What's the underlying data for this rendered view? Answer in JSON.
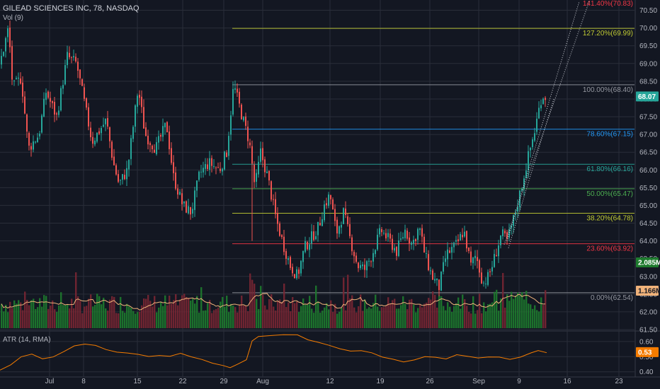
{
  "header": {
    "symbol_title": "GILEAD SCIENCES INC, 78, NASDAQ",
    "volume_indicator": "Vol (9)",
    "atr_indicator": "ATR (14, RMA)"
  },
  "chart_data": [
    {
      "type": "candlestick",
      "title": "GILEAD SCIENCES INC, 78, NASDAQ",
      "ylim": [
        61.5,
        70.75
      ],
      "y_ticks": [
        61.5,
        62.0,
        62.5,
        63.0,
        63.5,
        64.0,
        64.5,
        65.0,
        65.5,
        66.0,
        66.5,
        67.0,
        67.5,
        68.0,
        68.5,
        69.0,
        69.5,
        70.0,
        70.5
      ],
      "x_ticks": [
        "Jul",
        "8",
        "15",
        "22",
        "29",
        "Aug",
        "12",
        "19",
        "26",
        "Sep",
        "9",
        "16",
        "23"
      ],
      "last_price": 68.07,
      "price_path": [
        [
          0,
          69.0
        ],
        [
          12,
          70.0
        ],
        [
          18,
          68.3
        ],
        [
          30,
          68.6
        ],
        [
          40,
          66.6
        ],
        [
          55,
          67.0
        ],
        [
          65,
          68.2
        ],
        [
          80,
          67.5
        ],
        [
          95,
          69.2
        ],
        [
          108,
          69.0
        ],
        [
          120,
          67.8
        ],
        [
          130,
          66.8
        ],
        [
          150,
          67.4
        ],
        [
          160,
          66.2
        ],
        [
          168,
          65.6
        ],
        [
          180,
          66.0
        ],
        [
          195,
          68.3
        ],
        [
          205,
          67.0
        ],
        [
          220,
          66.6
        ],
        [
          235,
          67.3
        ],
        [
          245,
          65.8
        ],
        [
          258,
          65.0
        ],
        [
          270,
          64.8
        ],
        [
          282,
          65.9
        ],
        [
          295,
          66.2
        ],
        [
          310,
          66.0
        ],
        [
          320,
          66.5
        ],
        [
          330,
          68.4
        ],
        [
          342,
          67.5
        ],
        [
          352,
          66.8
        ],
        [
          360,
          65.5
        ],
        [
          368,
          66.5
        ],
        [
          378,
          65.8
        ],
        [
          390,
          64.6
        ],
        [
          400,
          63.9
        ],
        [
          410,
          63.3
        ],
        [
          420,
          63.0
        ],
        [
          430,
          63.8
        ],
        [
          440,
          64.1
        ],
        [
          450,
          64.4
        ],
        [
          458,
          65.0
        ],
        [
          466,
          65.3
        ],
        [
          475,
          64.2
        ],
        [
          485,
          64.8
        ],
        [
          495,
          64.0
        ],
        [
          505,
          63.3
        ],
        [
          515,
          63.2
        ],
        [
          525,
          63.6
        ],
        [
          538,
          64.3
        ],
        [
          550,
          64.0
        ],
        [
          560,
          63.7
        ],
        [
          572,
          64.3
        ],
        [
          582,
          63.9
        ],
        [
          592,
          64.4
        ],
        [
          600,
          63.6
        ],
        [
          610,
          63.0
        ],
        [
          620,
          62.7
        ],
        [
          630,
          63.6
        ],
        [
          645,
          63.9
        ],
        [
          655,
          64.3
        ],
        [
          665,
          63.3
        ],
        [
          672,
          63.6
        ],
        [
          682,
          62.8
        ],
        [
          690,
          63.0
        ],
        [
          698,
          63.5
        ],
        [
          708,
          64.2
        ],
        [
          716,
          64.0
        ],
        [
          725,
          64.6
        ],
        [
          735,
          65.4
        ],
        [
          745,
          66.3
        ],
        [
          755,
          67.1
        ],
        [
          765,
          68.1
        ],
        [
          772,
          68.07
        ]
      ],
      "annotations": {
        "session_high_marker": 68.4,
        "session_low_marker": 62.54
      }
    },
    {
      "type": "fibonacci",
      "levels": [
        {
          "label": "141.40%(70.83)",
          "value": 70.83,
          "color": "#f23645"
        },
        {
          "label": "127.20%(69.99)",
          "value": 69.99,
          "color": "#c0ca33"
        },
        {
          "label": "100.00%(68.40)",
          "value": 68.4,
          "color": "#9598a1"
        },
        {
          "label": "78.60%(67.15)",
          "value": 67.15,
          "color": "#2196f3"
        },
        {
          "label": "61.80%(66.16)",
          "value": 66.16,
          "color": "#26a69a"
        },
        {
          "label": "50.00%(65.47)",
          "value": 65.47,
          "color": "#4caf50"
        },
        {
          "label": "38.20%(64.78)",
          "value": 64.78,
          "color": "#c0ca33"
        },
        {
          "label": "23.60%(63.92)",
          "value": 63.92,
          "color": "#f23645"
        },
        {
          "label": "0.00%(62.54)",
          "value": 62.54,
          "color": "#9598a1"
        }
      ]
    },
    {
      "type": "bar",
      "title": "Vol (9)",
      "last_volume_label": "2.085M",
      "volume_ma_label": "1.166M",
      "colors": {
        "up": "#1e7b2e",
        "down": "#7a2633",
        "ma": "#f0b27a"
      }
    },
    {
      "type": "line",
      "title": "ATR (14, RMA)",
      "ylim": [
        0.38,
        0.66
      ],
      "y_ticks": [
        0.4,
        0.5,
        0.6
      ],
      "last_value_label": "0.53",
      "color": "#f57c00",
      "values_path": [
        [
          0,
          0.41
        ],
        [
          15,
          0.45
        ],
        [
          30,
          0.5
        ],
        [
          45,
          0.52
        ],
        [
          60,
          0.49
        ],
        [
          75,
          0.5
        ],
        [
          90,
          0.53
        ],
        [
          105,
          0.57
        ],
        [
          120,
          0.58
        ],
        [
          135,
          0.57
        ],
        [
          150,
          0.55
        ],
        [
          165,
          0.53
        ],
        [
          180,
          0.52
        ],
        [
          195,
          0.52
        ],
        [
          210,
          0.5
        ],
        [
          225,
          0.51
        ],
        [
          240,
          0.5
        ],
        [
          255,
          0.52
        ],
        [
          270,
          0.5
        ],
        [
          285,
          0.48
        ],
        [
          300,
          0.46
        ],
        [
          315,
          0.44
        ],
        [
          325,
          0.43
        ],
        [
          335,
          0.45
        ],
        [
          348,
          0.48
        ],
        [
          356,
          0.6
        ],
        [
          365,
          0.63
        ],
        [
          380,
          0.64
        ],
        [
          400,
          0.64
        ],
        [
          420,
          0.64
        ],
        [
          435,
          0.61
        ],
        [
          450,
          0.59
        ],
        [
          465,
          0.57
        ],
        [
          480,
          0.55
        ],
        [
          495,
          0.54
        ],
        [
          510,
          0.54
        ],
        [
          525,
          0.53
        ],
        [
          540,
          0.5
        ],
        [
          555,
          0.48
        ],
        [
          570,
          0.47
        ],
        [
          585,
          0.48
        ],
        [
          600,
          0.5
        ],
        [
          615,
          0.5
        ],
        [
          630,
          0.49
        ],
        [
          645,
          0.51
        ],
        [
          660,
          0.5
        ],
        [
          675,
          0.49
        ],
        [
          690,
          0.5
        ],
        [
          705,
          0.5
        ],
        [
          720,
          0.48
        ],
        [
          735,
          0.5
        ],
        [
          750,
          0.53
        ],
        [
          760,
          0.54
        ],
        [
          772,
          0.53
        ]
      ]
    }
  ],
  "colors": {
    "background": "#131722",
    "grid": "#2a2e39",
    "axis_text": "#b2b5be",
    "up": "#26a69a",
    "down": "#ef5350",
    "last_price_bg": "#26a69a",
    "atr_line": "#f57c00"
  }
}
